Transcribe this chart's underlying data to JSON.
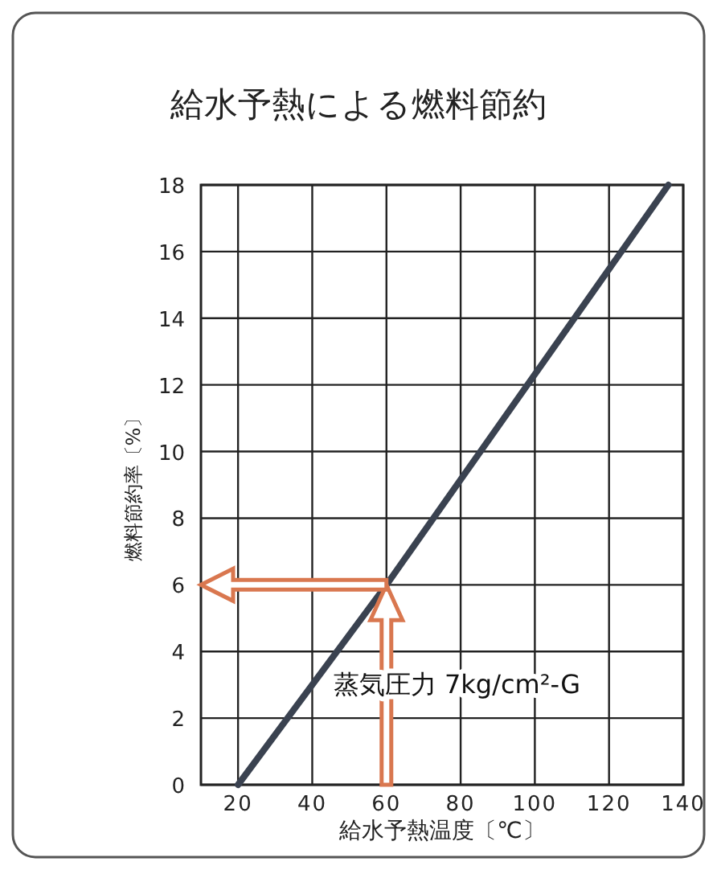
{
  "chart_data": {
    "type": "line",
    "title": "給水予熱による燃料節約",
    "xlabel": "給水予熱温度〔℃〕",
    "ylabel": "燃料節約率〔%〕",
    "xlim": [
      10,
      140
    ],
    "ylim": [
      0,
      18
    ],
    "xticks": [
      20,
      40,
      60,
      80,
      100,
      120,
      140
    ],
    "yticks": [
      0,
      2,
      4,
      6,
      8,
      10,
      12,
      14,
      16,
      18
    ],
    "grid": true,
    "series": [
      {
        "name": "蒸気圧力 7kg/cm²-G",
        "color": "#3a4250",
        "x": [
          20,
          60,
          136
        ],
        "values": [
          0,
          6,
          18
        ]
      }
    ]
  }
}
